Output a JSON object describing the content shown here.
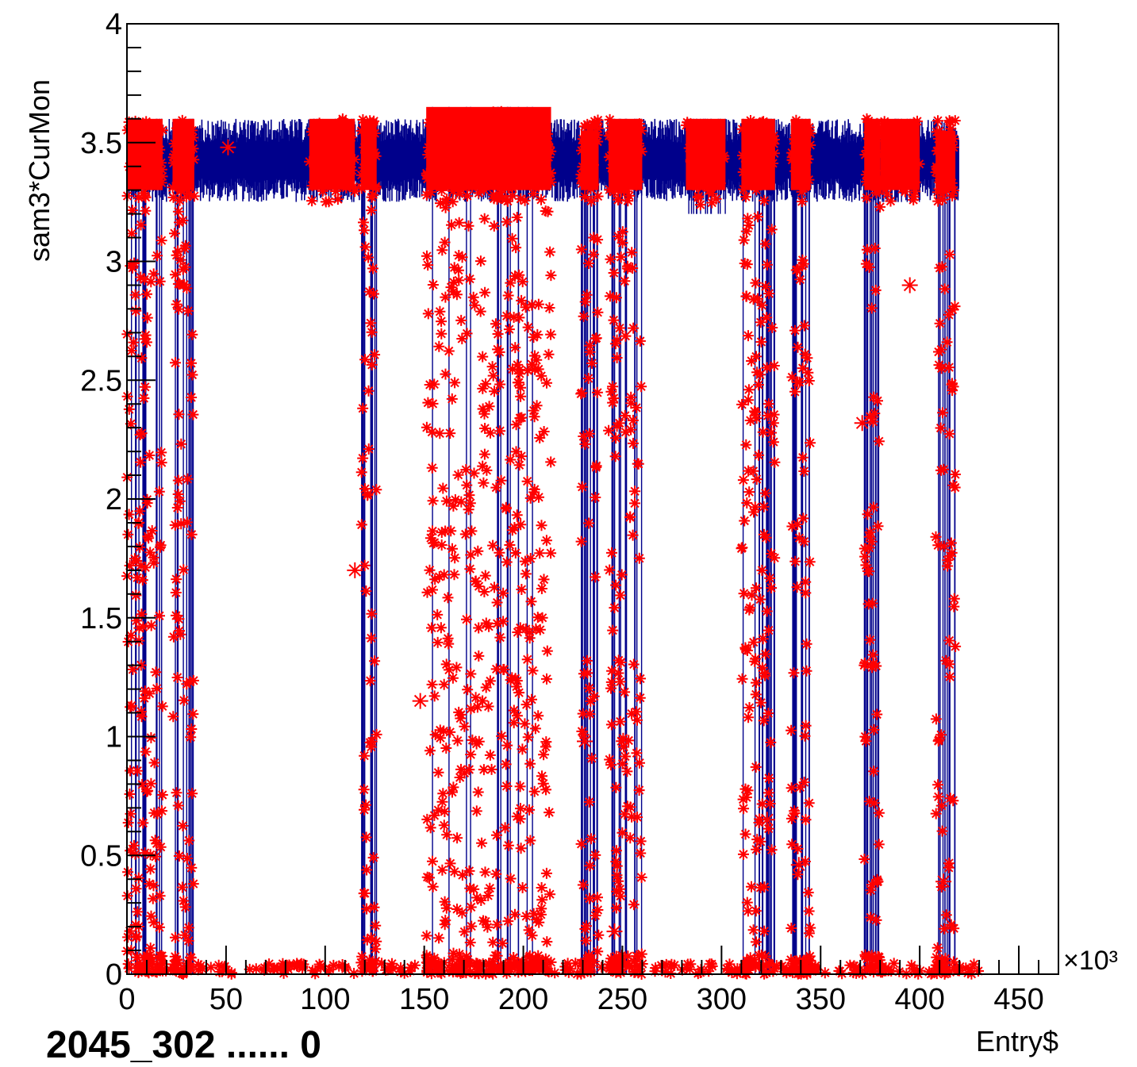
{
  "chart_data": {
    "type": "scatter",
    "title": "",
    "xlabel": "Entry$",
    "ylabel": "sam3*CurMon",
    "x_multiplier_label": "×10³",
    "xlim": [
      0,
      470
    ],
    "ylim": [
      0,
      4
    ],
    "x_ticks": [
      0,
      50,
      100,
      150,
      200,
      250,
      300,
      350,
      400,
      450
    ],
    "x_tick_labels": [
      "0",
      "50",
      "100",
      "150",
      "200",
      "250",
      "300",
      "350",
      "400",
      "450"
    ],
    "y_ticks": [
      0,
      0.5,
      1,
      1.5,
      2,
      2.5,
      3,
      3.5,
      4
    ],
    "y_tick_labels": [
      "0",
      "0.5",
      "1",
      "1.5",
      "2",
      "2.5",
      "3",
      "3.5",
      "4"
    ],
    "grid": false,
    "legend": "none",
    "colors": {
      "line": "#00008b",
      "markers": "#ff0000",
      "frame": "#000000"
    },
    "series": [
      {
        "marker": "asterisk",
        "description_note": "",
        "baseline_band": {
          "x_range": [
            0,
            420
          ],
          "y_range": [
            3.25,
            3.6
          ]
        },
        "dense_segments": [
          {
            "x": [
              0,
              18
            ],
            "y": [
              0,
              3.6
            ]
          },
          {
            "x": [
              23,
              34
            ],
            "y": [
              0,
              3.6
            ]
          },
          {
            "x": [
              92,
              115
            ],
            "y": [
              3.25,
              3.6
            ]
          },
          {
            "x": [
              118,
              126
            ],
            "y": [
              0,
              3.6
            ]
          },
          {
            "x": [
              151,
              214
            ],
            "y": [
              0,
              3.65
            ]
          },
          {
            "x": [
              229,
              238
            ],
            "y": [
              0,
              3.55
            ]
          },
          {
            "x": [
              243,
              260
            ],
            "y": [
              0,
              3.6
            ]
          },
          {
            "x": [
              282,
              302
            ],
            "y": [
              3.2,
              3.6
            ]
          },
          {
            "x": [
              310,
              327
            ],
            "y": [
              0,
              3.6
            ]
          },
          {
            "x": [
              335,
              345
            ],
            "y": [
              0,
              3.6
            ]
          },
          {
            "x": [
              372,
              380
            ],
            "y": [
              0,
              3.6
            ]
          },
          {
            "x": [
              380,
              400
            ],
            "y": [
              3.25,
              3.6
            ]
          },
          {
            "x": [
              408,
              418
            ],
            "y": [
              0,
              3.55
            ]
          }
        ],
        "isolated_points": [
          {
            "x": 51,
            "y": 3.48
          },
          {
            "x": 115,
            "y": 1.7
          },
          {
            "x": 148,
            "y": 1.15
          },
          {
            "x": 231,
            "y": 0.98
          },
          {
            "x": 246,
            "y": 0.18
          },
          {
            "x": 323,
            "y": 0.65
          },
          {
            "x": 339,
            "y": 0.46
          },
          {
            "x": 371,
            "y": 2.32
          },
          {
            "x": 395,
            "y": 2.9
          },
          {
            "x": 412,
            "y": 0.39
          }
        ],
        "zero_band": {
          "x_range": [
            0,
            430
          ],
          "y": 0
        }
      }
    ]
  },
  "caption": "2045_302 ...... 0"
}
